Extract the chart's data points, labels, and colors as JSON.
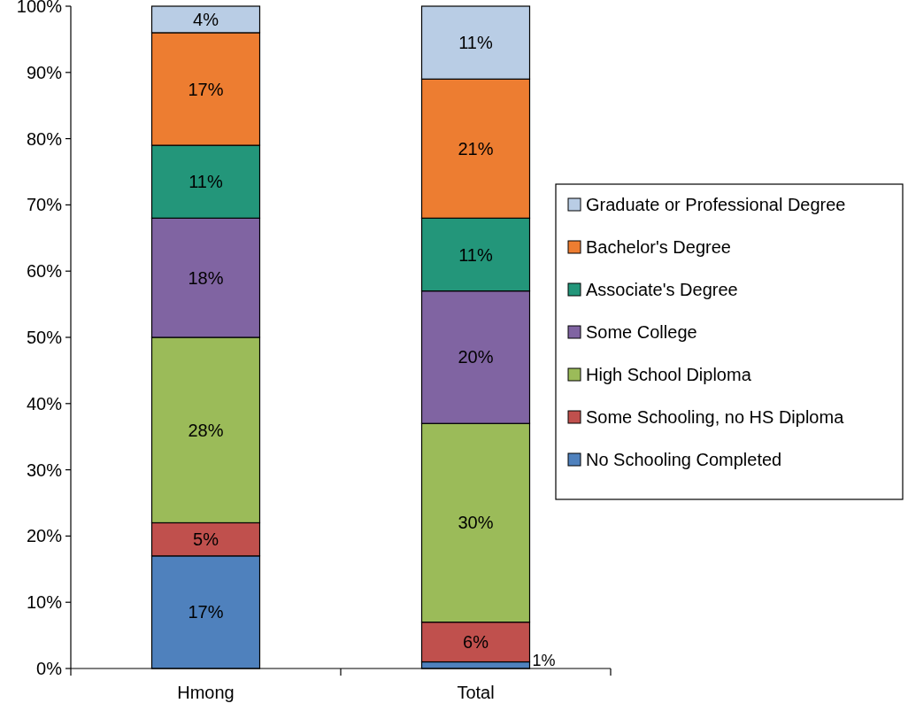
{
  "chart_data": {
    "type": "bar",
    "stacked": true,
    "categories": [
      "Hmong",
      "Total"
    ],
    "series": [
      {
        "name": "No Schooling Completed",
        "color": "#4f81bd",
        "values": [
          17,
          1
        ],
        "value_labels": [
          "17%",
          "1%"
        ]
      },
      {
        "name": "Some Schooling, no HS Diploma",
        "color": "#c0504d",
        "values": [
          5,
          6
        ],
        "value_labels": [
          "5%",
          "6%"
        ]
      },
      {
        "name": "High School Diploma",
        "color": "#9bbb59",
        "values": [
          28,
          30
        ],
        "value_labels": [
          "28%",
          "30%"
        ]
      },
      {
        "name": "Some College",
        "color": "#8064a2",
        "values": [
          18,
          20
        ],
        "value_labels": [
          "18%",
          "20%"
        ]
      },
      {
        "name": "Associate's Degree",
        "color": "#23967a",
        "values": [
          11,
          11
        ],
        "value_labels": [
          "11%",
          "11%"
        ]
      },
      {
        "name": "Bachelor's Degree",
        "color": "#ed7d31",
        "values": [
          17,
          21
        ],
        "value_labels": [
          "17%",
          "21%"
        ]
      },
      {
        "name": "Graduate or Professional Degree",
        "color": "#b9cde5",
        "values": [
          4,
          11
        ],
        "value_labels": [
          "4%",
          "11%"
        ]
      }
    ],
    "ylim": [
      0,
      100
    ],
    "yticks": [
      {
        "value": 0,
        "label": "0%"
      },
      {
        "value": 10,
        "label": "10%"
      },
      {
        "value": 20,
        "label": "20%"
      },
      {
        "value": 30,
        "label": "30%"
      },
      {
        "value": 40,
        "label": "40%"
      },
      {
        "value": 50,
        "label": "50%"
      },
      {
        "value": 60,
        "label": "60%"
      },
      {
        "value": 70,
        "label": "70%"
      },
      {
        "value": 80,
        "label": "80%"
      },
      {
        "value": 90,
        "label": "90%"
      },
      {
        "value": 100,
        "label": "100%"
      }
    ],
    "grid": false,
    "legend": "right"
  }
}
